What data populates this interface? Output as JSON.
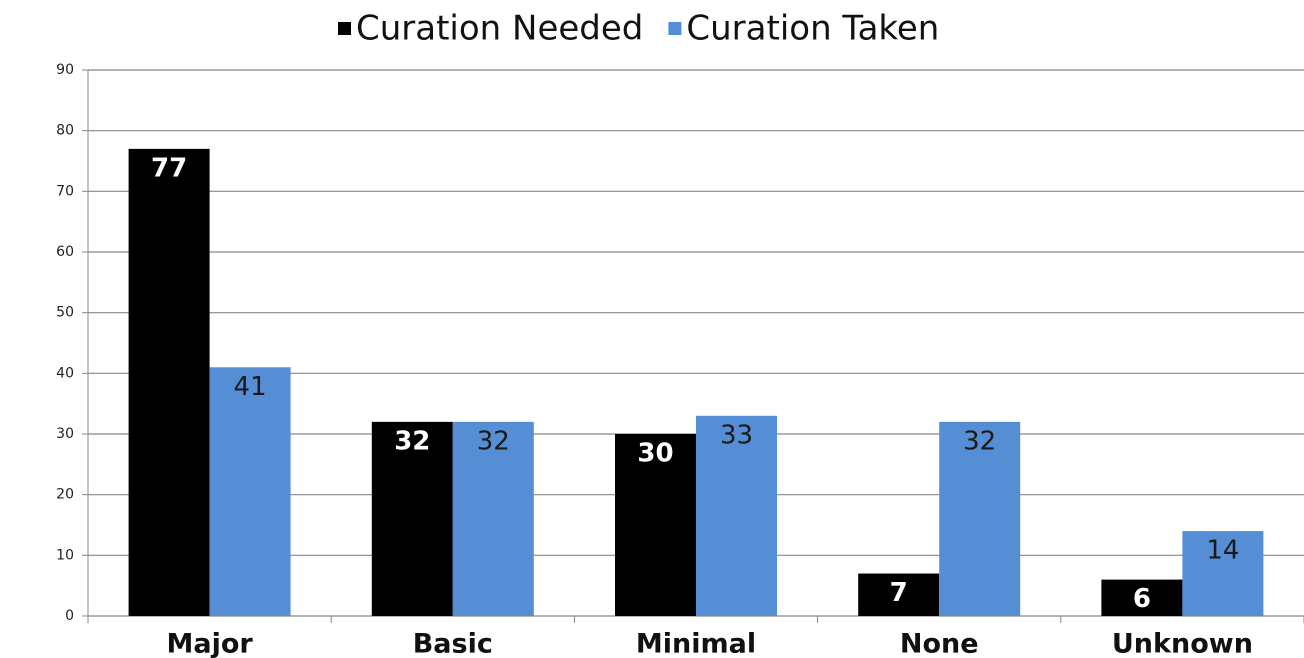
{
  "chart_data": {
    "type": "bar",
    "categories": [
      "Major",
      "Basic",
      "Minimal",
      "None",
      "Unknown"
    ],
    "series": [
      {
        "name": "Curation Needed",
        "color": "#000000",
        "values": [
          77,
          32,
          30,
          7,
          6
        ]
      },
      {
        "name": "Curation Taken",
        "color": "#558ed5",
        "values": [
          41,
          32,
          33,
          32,
          14
        ]
      }
    ],
    "ylim": [
      0,
      90
    ],
    "yticks": [
      0,
      10,
      20,
      30,
      40,
      50,
      60,
      70,
      80,
      90
    ],
    "grid": true,
    "legend": "top"
  }
}
